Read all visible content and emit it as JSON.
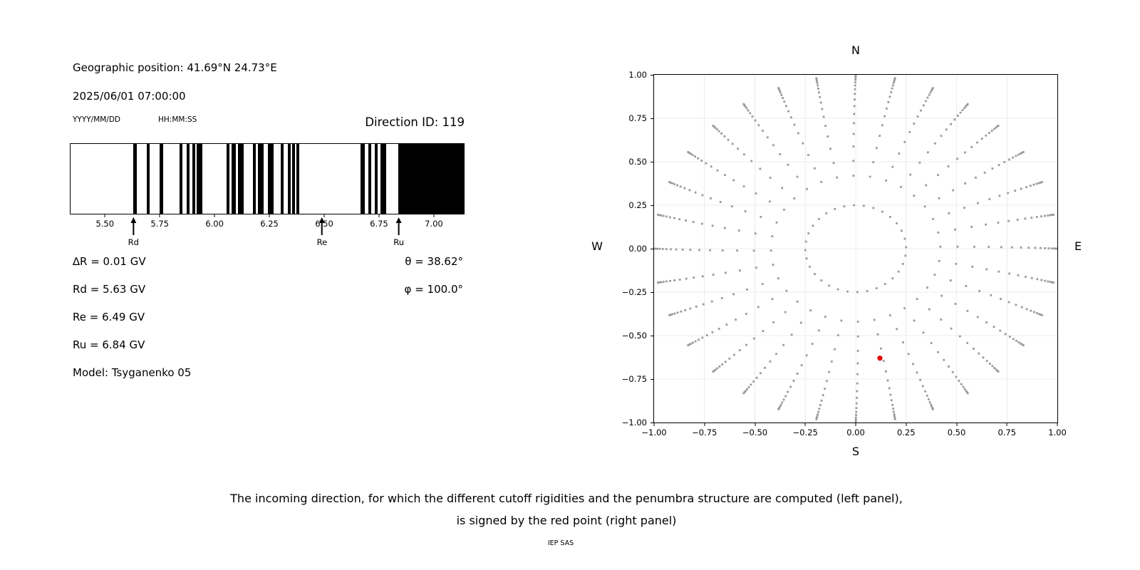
{
  "header": {
    "geo_position": "Geographic position: 41.69°N 24.73°E",
    "datetime": "2025/06/01 07:00:00",
    "date_format": "YYYY/MM/DD",
    "time_format": "HH:MM:SS",
    "direction_id": "Direction ID: 119"
  },
  "cutoffs": {
    "delta_r": "∆R = 0.01 GV",
    "rd": "Rd = 5.63 GV",
    "re": "Re = 6.49 GV",
    "ru": "Ru = 6.84 GV",
    "model": "Model: Tsyganenko 05",
    "theta": "θ = 38.62°",
    "phi": "φ = 100.0°"
  },
  "caption": {
    "line1": "The incoming direction, for which the different cutoff rigidities and the penumbra structure are computed (left panel),",
    "line2": "is signed by the red point (right panel)",
    "credit": "IEP SAS"
  },
  "chart_data": [
    {
      "id": "penumbra-structure",
      "type": "bar",
      "description": "Penumbra structure barcode: black bands = allowed rigidity intervals, white = forbidden",
      "x_unit": "GV",
      "xlim": [
        5.34,
        7.14
      ],
      "x_ticks": [
        5.5,
        5.75,
        6.0,
        6.25,
        6.5,
        6.75,
        7.0
      ],
      "band_color": "#000000",
      "bands_gv": [
        [
          5.628,
          5.642
        ],
        [
          5.688,
          5.702
        ],
        [
          5.749,
          5.763
        ],
        [
          5.839,
          5.853
        ],
        [
          5.871,
          5.885
        ],
        [
          5.897,
          5.911
        ],
        [
          5.918,
          5.943
        ],
        [
          6.053,
          6.067
        ],
        [
          6.076,
          6.098
        ],
        [
          6.105,
          6.131
        ],
        [
          6.175,
          6.189
        ],
        [
          6.197,
          6.223
        ],
        [
          6.244,
          6.27
        ],
        [
          6.301,
          6.314
        ],
        [
          6.335,
          6.348
        ],
        [
          6.355,
          6.368
        ],
        [
          6.373,
          6.387
        ],
        [
          6.666,
          6.687
        ],
        [
          6.704,
          6.717
        ],
        [
          6.731,
          6.745
        ],
        [
          6.758,
          6.785
        ],
        [
          6.839,
          7.14
        ]
      ],
      "markers": [
        {
          "label": "Rd",
          "value_gv": 5.63
        },
        {
          "label": "Re",
          "value_gv": 6.49
        },
        {
          "label": "Ru",
          "value_gv": 6.84
        }
      ]
    },
    {
      "id": "direction-map",
      "type": "scatter",
      "description": "Grid of incoming directions: 32 azimuthal spokes with points bunching toward the unit circle, plus inner ring at r=0.25; red point marks the selected incoming direction",
      "xlim": [
        -1,
        1
      ],
      "ylim": [
        -1,
        1
      ],
      "x_ticks": [
        -1.0,
        -0.75,
        -0.5,
        -0.25,
        0.0,
        0.25,
        0.5,
        0.75,
        1.0
      ],
      "y_ticks": [
        -1.0,
        -0.75,
        -0.5,
        -0.25,
        0.0,
        0.25,
        0.5,
        0.75,
        1.0
      ],
      "compass": {
        "top": "N",
        "bottom": "S",
        "left": "W",
        "right": "E"
      },
      "grid": true,
      "grid_color": "#ececec",
      "dot_color": "#9a9a9a",
      "dot_size_px": 2.8,
      "direction_grid": {
        "azimuth_count": 32,
        "azimuth_step_deg": 11.25,
        "inner_ring_radius": 0.25,
        "spoke_radii": [
          1.0,
          0.993,
          0.984,
          0.972,
          0.957,
          0.939,
          0.917,
          0.89,
          0.858,
          0.82,
          0.775,
          0.722,
          0.66,
          0.588,
          0.505,
          0.42
        ],
        "twist_deg_at_inner": 1.5
      },
      "red_point": {
        "x": 0.12,
        "y": -0.63,
        "color": "#e60000",
        "radius_px": 3.6
      }
    }
  ]
}
